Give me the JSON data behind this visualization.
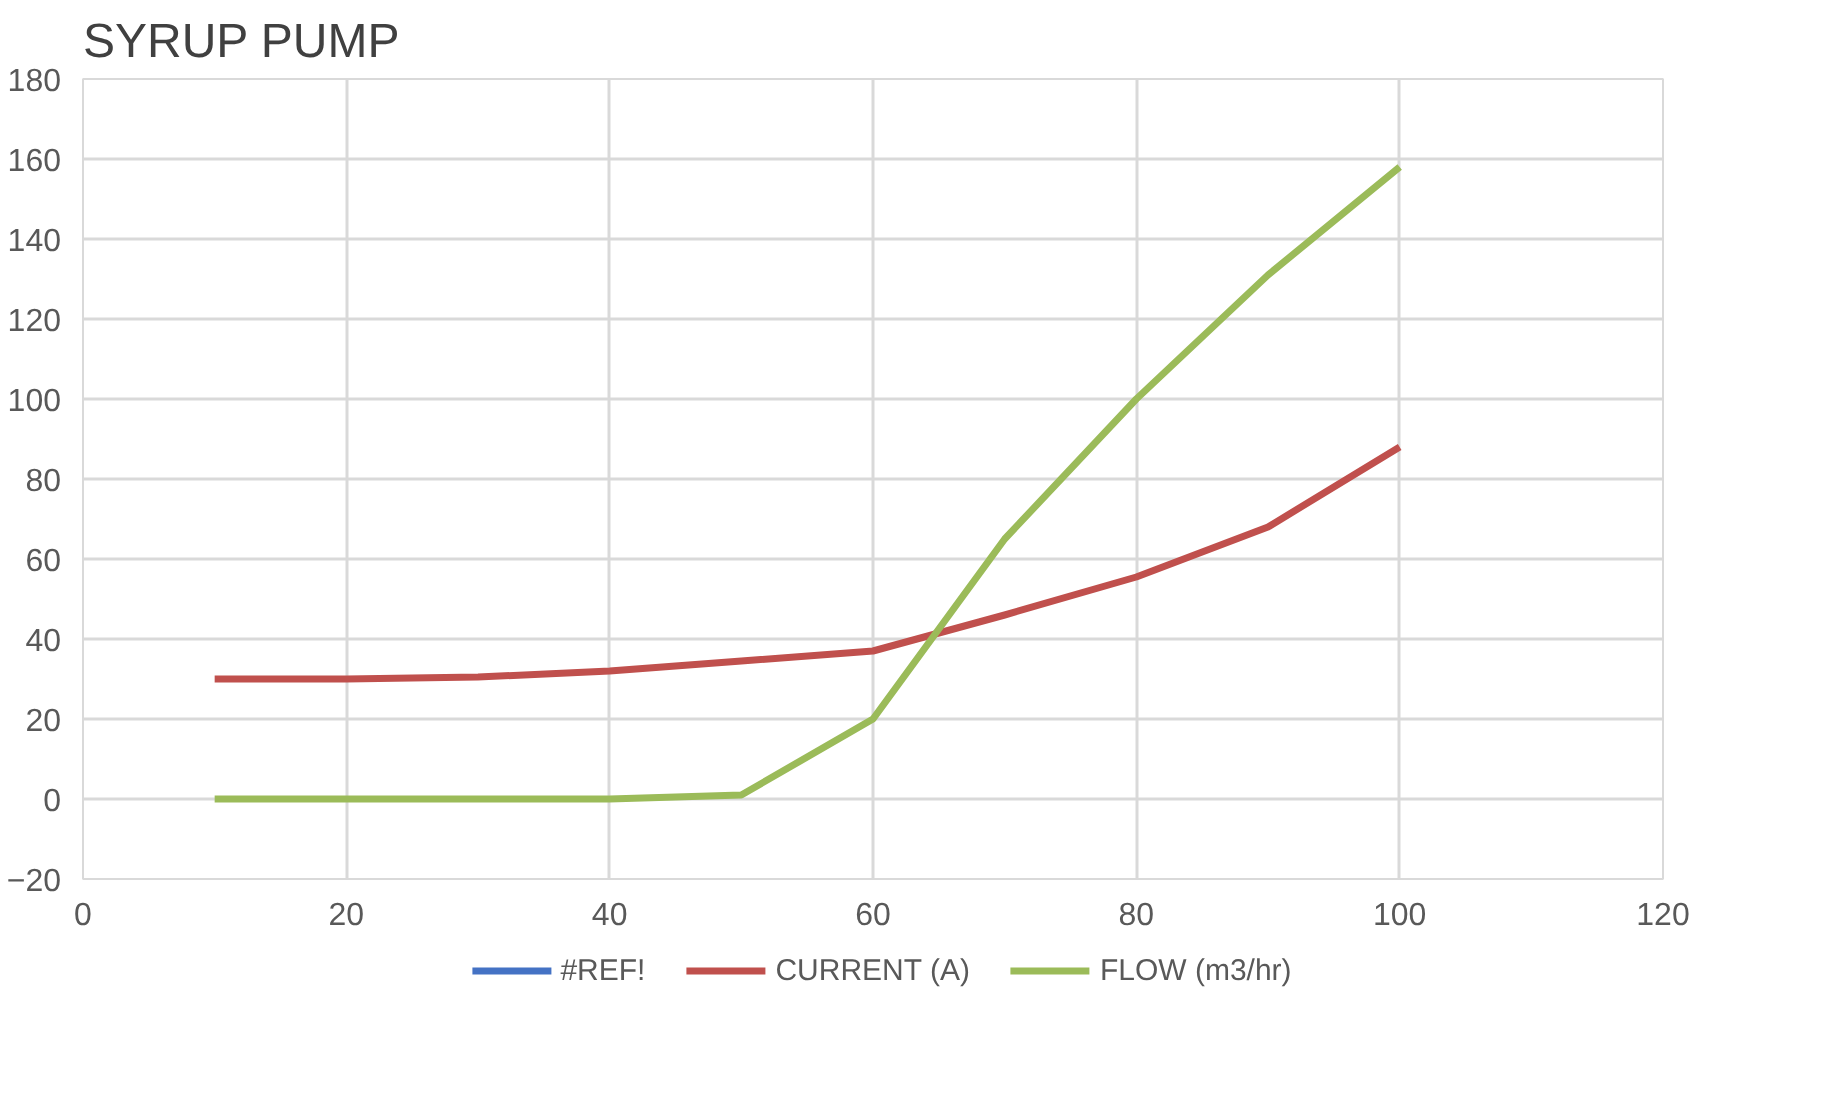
{
  "chart_data": {
    "type": "line",
    "title": "SYRUP PUMP",
    "x": [
      10,
      20,
      30,
      40,
      50,
      60,
      70,
      80,
      90,
      100
    ],
    "series": [
      {
        "name": "#REF!",
        "color": "#4472c4",
        "values": [
          null,
          null,
          null,
          null,
          null,
          null,
          null,
          null,
          null,
          null
        ]
      },
      {
        "name": "CURRENT (A)",
        "color": "#c0504d",
        "values": [
          30,
          30,
          30.5,
          32,
          34.5,
          37,
          46,
          55.5,
          68,
          88
        ]
      },
      {
        "name": "FLOW (m3/hr)",
        "color": "#9bbb59",
        "values": [
          0,
          0,
          0,
          0,
          1,
          20,
          65,
          100,
          131,
          158
        ]
      }
    ],
    "xlim": [
      0,
      120
    ],
    "xticks": [
      0,
      20,
      40,
      60,
      80,
      100,
      120
    ],
    "ylim": [
      -20,
      180
    ],
    "yticks": [
      -20,
      0,
      20,
      40,
      60,
      80,
      100,
      120,
      140,
      160,
      180
    ],
    "grid": true,
    "legend": "bottom",
    "line_style": "solid"
  }
}
